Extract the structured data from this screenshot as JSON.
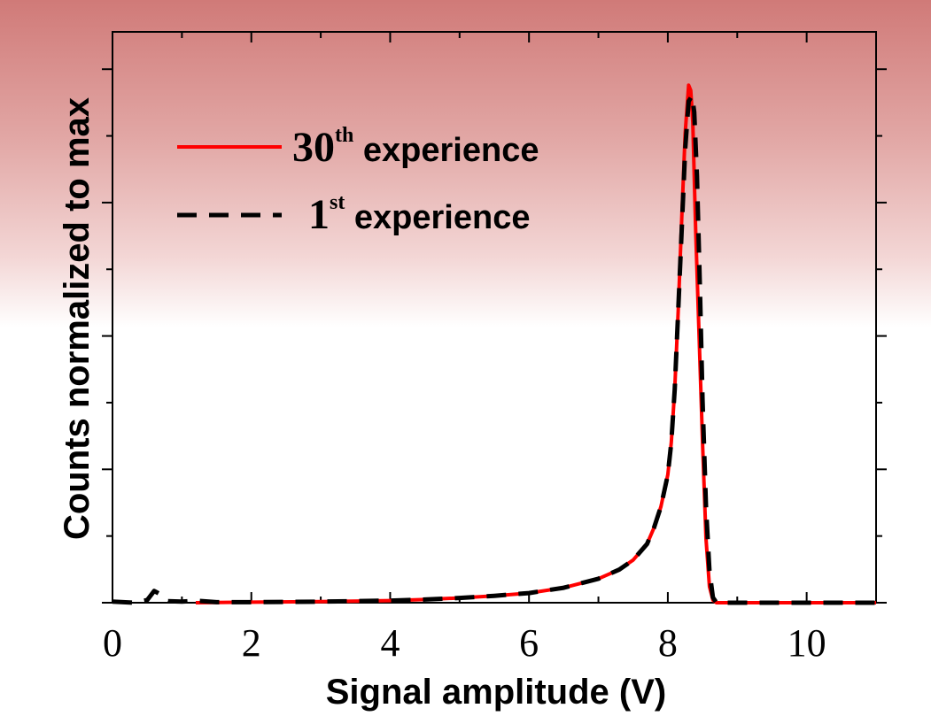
{
  "chart_data": {
    "type": "line",
    "title": "",
    "xlabel": "Signal amplitude (V)",
    "ylabel": "Counts normalized to max",
    "xlim": [
      0,
      11
    ],
    "ylim": [
      0,
      1.07
    ],
    "x_ticks": [
      "0",
      "2",
      "4",
      "6",
      "8",
      "10"
    ],
    "y_ticks_labeled": false,
    "grid": false,
    "legend_position": "upper-left",
    "series": [
      {
        "name_parts": {
          "number": "30",
          "sup": "th",
          "text": " experience"
        },
        "color": "#ff0000",
        "style": "solid",
        "x": [
          1.2,
          2,
          3,
          4,
          4.5,
          5,
          5.5,
          6,
          6.5,
          7,
          7.3,
          7.5,
          7.7,
          7.8,
          7.9,
          8.0,
          8.05,
          8.1,
          8.15,
          8.2,
          8.25,
          8.3,
          8.33,
          8.36,
          8.4,
          8.45,
          8.5,
          8.55,
          8.6,
          8.65,
          8.7,
          9.0,
          10.0,
          11.0
        ],
        "y": [
          0,
          0.001,
          0.002,
          0.004,
          0.006,
          0.009,
          0.013,
          0.018,
          0.028,
          0.045,
          0.062,
          0.08,
          0.11,
          0.14,
          0.18,
          0.24,
          0.3,
          0.4,
          0.55,
          0.72,
          0.88,
          0.97,
          0.96,
          0.9,
          0.7,
          0.5,
          0.3,
          0.12,
          0.03,
          0.005,
          0,
          0,
          0,
          0
        ]
      },
      {
        "name_parts": {
          "number": "1",
          "sup": "st",
          "text": " experience"
        },
        "color": "#000000",
        "style": "dashed",
        "x": [
          0.0,
          0.3,
          0.5,
          0.6,
          0.7,
          0.8,
          1.0,
          1.2,
          1.5,
          2,
          3,
          4,
          4.5,
          5,
          5.5,
          6,
          6.5,
          7,
          7.3,
          7.5,
          7.7,
          7.8,
          7.9,
          8.0,
          8.05,
          8.1,
          8.15,
          8.2,
          8.25,
          8.3,
          8.35,
          8.38,
          8.42,
          8.46,
          8.5,
          8.55,
          8.6,
          8.65,
          8.7,
          9.0,
          10.0,
          11.0
        ],
        "y": [
          0.002,
          0.0,
          0.005,
          0.022,
          0.015,
          0.003,
          0.002,
          0.004,
          0.001,
          0.001,
          0.002,
          0.004,
          0.006,
          0.009,
          0.013,
          0.018,
          0.028,
          0.045,
          0.062,
          0.08,
          0.11,
          0.14,
          0.18,
          0.24,
          0.3,
          0.4,
          0.55,
          0.7,
          0.85,
          0.94,
          0.95,
          0.92,
          0.8,
          0.6,
          0.38,
          0.18,
          0.06,
          0.01,
          0,
          0,
          0,
          0
        ]
      }
    ]
  }
}
